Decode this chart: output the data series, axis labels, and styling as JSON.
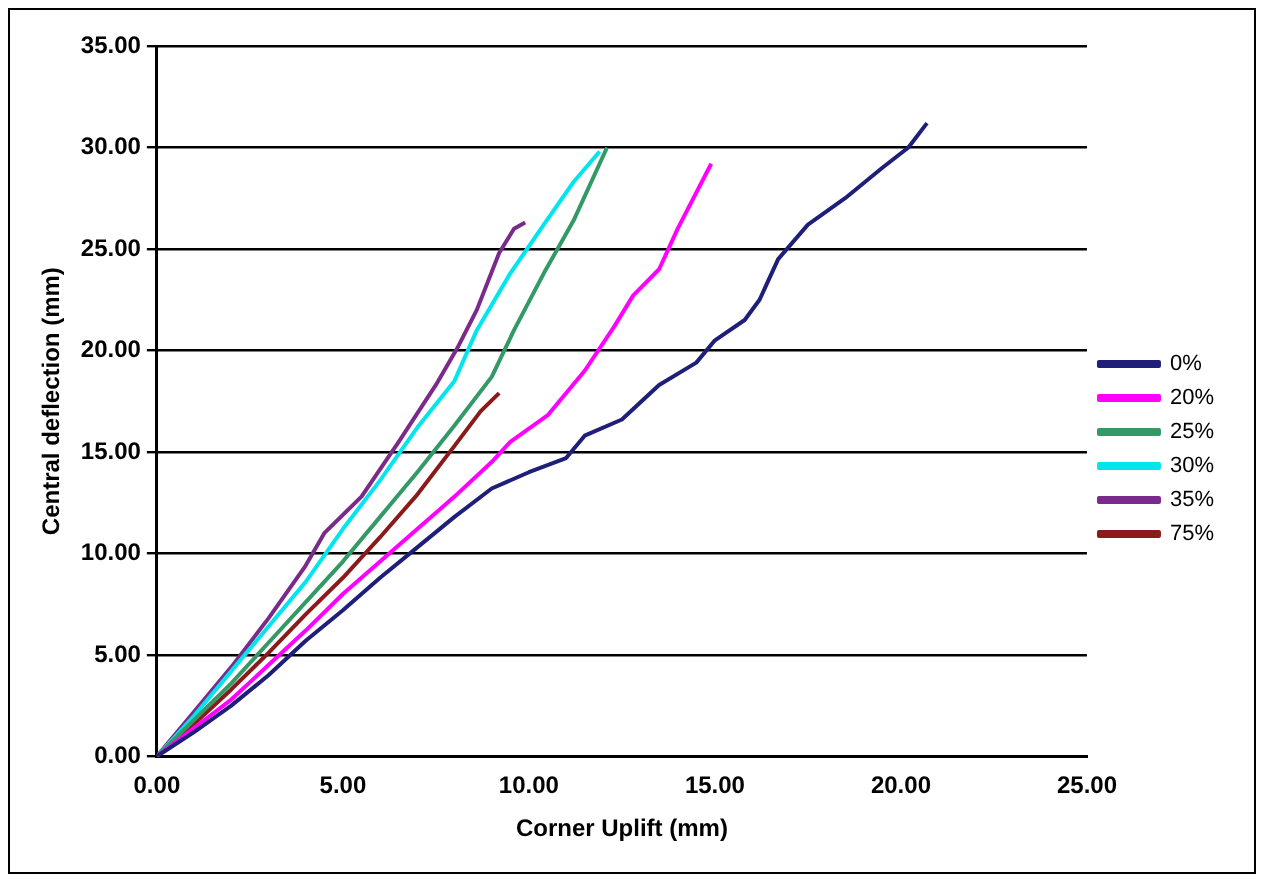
{
  "chart_data": {
    "type": "line",
    "xlabel": "Corner Uplift (mm)",
    "ylabel": "Central deflection (mm)",
    "xlim": [
      0,
      25
    ],
    "xticks": [
      {
        "value": 0,
        "label": "0.00"
      },
      {
        "value": 5,
        "label": "5.00"
      },
      {
        "value": 10,
        "label": "10.00"
      },
      {
        "value": 15,
        "label": "15.00"
      },
      {
        "value": 20,
        "label": "20.00"
      },
      {
        "value": 25,
        "label": "25.00"
      }
    ],
    "ylim": [
      0,
      35
    ],
    "yticks": [
      {
        "value": 0,
        "label": "0.00"
      },
      {
        "value": 5,
        "label": "5.00"
      },
      {
        "value": 10,
        "label": "10.00"
      },
      {
        "value": 15,
        "label": "15.00"
      },
      {
        "value": 20,
        "label": "20.00"
      },
      {
        "value": 25,
        "label": "25.00"
      },
      {
        "value": 30,
        "label": "30.00"
      },
      {
        "value": 35,
        "label": "35.00"
      }
    ],
    "grid": "y",
    "legend": "right",
    "marker": "none",
    "line_style": "solid",
    "series": [
      {
        "name": "0%",
        "color": "#1f1f7a",
        "x": [
          0,
          1,
          2,
          3,
          4,
          5,
          6,
          7,
          8,
          9,
          10,
          11,
          11.5,
          12.5,
          13.5,
          14.5,
          15,
          15.8,
          16.2,
          16.7,
          17.5,
          18.5,
          19.5,
          20.2,
          20.7
        ],
        "values": [
          0,
          1.2,
          2.5,
          4,
          5.7,
          7.2,
          8.8,
          10.3,
          11.8,
          13.2,
          14,
          14.7,
          15.8,
          16.6,
          18.3,
          19.4,
          20.5,
          21.5,
          22.5,
          24.5,
          26.2,
          27.5,
          29,
          30,
          31.2
        ]
      },
      {
        "name": "20%",
        "color": "#ff00ff",
        "x": [
          0,
          1,
          2,
          3,
          4,
          5,
          6,
          7,
          8,
          9,
          9.5,
          10.5,
          11.5,
          12.3,
          12.8,
          13.5,
          14,
          14.9
        ],
        "values": [
          0,
          1.4,
          2.8,
          4.5,
          6.2,
          8,
          9.6,
          11.2,
          12.8,
          14.5,
          15.5,
          16.8,
          19,
          21.2,
          22.7,
          24,
          26,
          29.2
        ]
      },
      {
        "name": "25%",
        "color": "#339966",
        "x": [
          0,
          1,
          2,
          3,
          4,
          5,
          6,
          7,
          8,
          9,
          9.6,
          10.4,
          11.2,
          12.1
        ],
        "values": [
          0,
          1.8,
          3.6,
          5.6,
          7.6,
          9.6,
          11.8,
          14,
          16.3,
          18.7,
          21,
          23.8,
          26.4,
          30
        ]
      },
      {
        "name": "30%",
        "color": "#00e5ee",
        "x": [
          0,
          1,
          2,
          3,
          4,
          5,
          6,
          7,
          8,
          8.6,
          9.5,
          10.4,
          11.2,
          11.9
        ],
        "values": [
          0,
          2,
          4.2,
          6.4,
          8.6,
          11.2,
          13.6,
          16.2,
          18.5,
          21,
          23.8,
          26.2,
          28.3,
          29.8
        ]
      },
      {
        "name": "35%",
        "color": "#7a2a8a",
        "x": [
          0,
          1,
          2,
          3,
          4,
          4.5,
          5.5,
          6.5,
          7.5,
          8.1,
          8.6,
          9.2,
          9.6,
          9.9
        ],
        "values": [
          0,
          2.2,
          4.4,
          6.8,
          9.4,
          11,
          12.8,
          15.5,
          18.3,
          20.2,
          22,
          24.8,
          26,
          26.3
        ]
      },
      {
        "name": "75%",
        "color": "#8b1a1a",
        "x": [
          0,
          1,
          2,
          3,
          4,
          5,
          6,
          7,
          8,
          8.7,
          9.2
        ],
        "values": [
          0,
          1.6,
          3.3,
          5.1,
          7,
          8.8,
          10.8,
          12.9,
          15.3,
          17,
          17.9
        ]
      }
    ]
  }
}
